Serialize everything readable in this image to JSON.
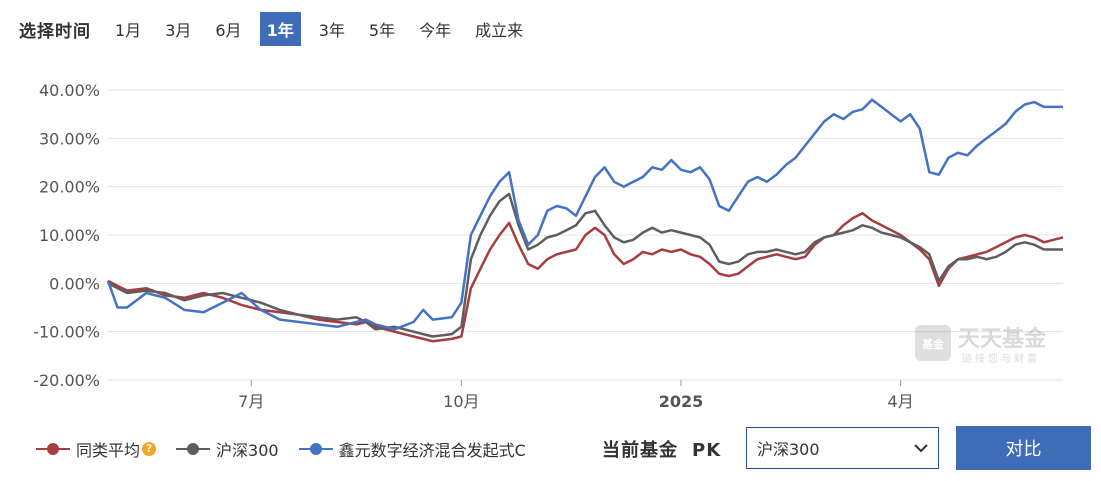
{
  "time_selector": {
    "title": "选择时间",
    "options": [
      "1月",
      "3月",
      "6月",
      "1年",
      "3年",
      "5年",
      "今年",
      "成立来"
    ],
    "active": "1年"
  },
  "watermark": {
    "text": "天天基金",
    "subtext": "链接您与财富",
    "logo_text": "基金"
  },
  "legend": {
    "items": [
      {
        "label": "同类平均",
        "color": "#a63d40",
        "has_help_icon": true
      },
      {
        "label": "沪深300",
        "color": "#5e5e5e",
        "has_help_icon": false
      },
      {
        "label": "鑫元数字经济混合发起式C",
        "color": "#4472c4",
        "has_help_icon": false
      }
    ]
  },
  "pk": {
    "label": "当前基金",
    "pk_text": "PK",
    "selected": "沪深300"
  },
  "compare_button": {
    "label": "对比"
  },
  "chart_data": {
    "type": "line",
    "yticks": [
      "40.00%",
      "30.00%",
      "20.00%",
      "10.00%",
      "0.00%",
      "-10.00%",
      "-20.00%"
    ],
    "ylim": [
      -20,
      40
    ],
    "x_labels": [
      {
        "label": "7月",
        "x": 0.15,
        "bold": false
      },
      {
        "label": "10月",
        "x": 0.37,
        "bold": false
      },
      {
        "label": "2025",
        "x": 0.6,
        "bold": true
      },
      {
        "label": "4月",
        "x": 0.83,
        "bold": false
      }
    ],
    "grid": true,
    "series": [
      {
        "name": "同类平均",
        "color": "#a63d40",
        "points": [
          [
            0,
            0.5
          ],
          [
            0.01,
            -0.5
          ],
          [
            0.02,
            -1.5
          ],
          [
            0.04,
            -1.0
          ],
          [
            0.06,
            -2.5
          ],
          [
            0.08,
            -3.0
          ],
          [
            0.1,
            -2.0
          ],
          [
            0.12,
            -3.0
          ],
          [
            0.14,
            -4.5
          ],
          [
            0.16,
            -5.5
          ],
          [
            0.18,
            -6.0
          ],
          [
            0.2,
            -6.5
          ],
          [
            0.22,
            -7.5
          ],
          [
            0.24,
            -8.0
          ],
          [
            0.26,
            -8.5
          ],
          [
            0.27,
            -8.0
          ],
          [
            0.28,
            -9.0
          ],
          [
            0.3,
            -10.0
          ],
          [
            0.32,
            -11.0
          ],
          [
            0.33,
            -11.5
          ],
          [
            0.34,
            -12.0
          ],
          [
            0.36,
            -11.5
          ],
          [
            0.37,
            -11.0
          ],
          [
            0.38,
            -1.0
          ],
          [
            0.39,
            3.0
          ],
          [
            0.4,
            7.0
          ],
          [
            0.41,
            10.0
          ],
          [
            0.42,
            12.5
          ],
          [
            0.43,
            8.0
          ],
          [
            0.44,
            4.0
          ],
          [
            0.45,
            3.0
          ],
          [
            0.46,
            5.0
          ],
          [
            0.47,
            6.0
          ],
          [
            0.48,
            6.5
          ],
          [
            0.49,
            7.0
          ],
          [
            0.5,
            10.0
          ],
          [
            0.51,
            11.5
          ],
          [
            0.52,
            10.0
          ],
          [
            0.53,
            6.0
          ],
          [
            0.54,
            4.0
          ],
          [
            0.55,
            5.0
          ],
          [
            0.56,
            6.5
          ],
          [
            0.57,
            6.0
          ],
          [
            0.58,
            7.0
          ],
          [
            0.59,
            6.5
          ],
          [
            0.6,
            7.0
          ],
          [
            0.61,
            6.0
          ],
          [
            0.62,
            5.5
          ],
          [
            0.63,
            4.0
          ],
          [
            0.64,
            2.0
          ],
          [
            0.65,
            1.5
          ],
          [
            0.66,
            2.0
          ],
          [
            0.67,
            3.5
          ],
          [
            0.68,
            5.0
          ],
          [
            0.69,
            5.5
          ],
          [
            0.7,
            6.0
          ],
          [
            0.71,
            5.5
          ],
          [
            0.72,
            5.0
          ],
          [
            0.73,
            5.5
          ],
          [
            0.74,
            8.0
          ],
          [
            0.75,
            9.5
          ],
          [
            0.76,
            10.0
          ],
          [
            0.77,
            12.0
          ],
          [
            0.78,
            13.5
          ],
          [
            0.79,
            14.5
          ],
          [
            0.8,
            13.0
          ],
          [
            0.81,
            12.0
          ],
          [
            0.82,
            11.0
          ],
          [
            0.83,
            10.0
          ],
          [
            0.84,
            8.5
          ],
          [
            0.85,
            7.0
          ],
          [
            0.86,
            5.0
          ],
          [
            0.87,
            -0.5
          ],
          [
            0.88,
            3.0
          ],
          [
            0.89,
            5.0
          ],
          [
            0.9,
            5.5
          ],
          [
            0.91,
            6.0
          ],
          [
            0.92,
            6.5
          ],
          [
            0.93,
            7.5
          ],
          [
            0.94,
            8.5
          ],
          [
            0.95,
            9.5
          ],
          [
            0.96,
            10.0
          ],
          [
            0.97,
            9.5
          ],
          [
            0.98,
            8.5
          ],
          [
            0.99,
            9.0
          ],
          [
            1.0,
            9.5
          ]
        ]
      },
      {
        "name": "沪深300",
        "color": "#5e5e5e",
        "points": [
          [
            0,
            0.0
          ],
          [
            0.01,
            -1.0
          ],
          [
            0.02,
            -2.0
          ],
          [
            0.04,
            -1.5
          ],
          [
            0.06,
            -2.0
          ],
          [
            0.08,
            -3.5
          ],
          [
            0.1,
            -2.5
          ],
          [
            0.12,
            -2.0
          ],
          [
            0.14,
            -3.0
          ],
          [
            0.16,
            -4.0
          ],
          [
            0.18,
            -5.5
          ],
          [
            0.2,
            -6.5
          ],
          [
            0.22,
            -7.0
          ],
          [
            0.24,
            -7.5
          ],
          [
            0.26,
            -7.0
          ],
          [
            0.27,
            -8.0
          ],
          [
            0.28,
            -9.5
          ],
          [
            0.3,
            -9.0
          ],
          [
            0.32,
            -10.0
          ],
          [
            0.33,
            -10.5
          ],
          [
            0.34,
            -11.0
          ],
          [
            0.36,
            -10.5
          ],
          [
            0.37,
            -9.0
          ],
          [
            0.38,
            5.0
          ],
          [
            0.39,
            10.0
          ],
          [
            0.4,
            14.0
          ],
          [
            0.41,
            17.0
          ],
          [
            0.42,
            18.5
          ],
          [
            0.43,
            12.0
          ],
          [
            0.44,
            7.0
          ],
          [
            0.45,
            8.0
          ],
          [
            0.46,
            9.5
          ],
          [
            0.47,
            10.0
          ],
          [
            0.48,
            11.0
          ],
          [
            0.49,
            12.0
          ],
          [
            0.5,
            14.5
          ],
          [
            0.51,
            15.0
          ],
          [
            0.52,
            12.0
          ],
          [
            0.53,
            9.5
          ],
          [
            0.54,
            8.5
          ],
          [
            0.55,
            9.0
          ],
          [
            0.56,
            10.5
          ],
          [
            0.57,
            11.5
          ],
          [
            0.58,
            10.5
          ],
          [
            0.59,
            11.0
          ],
          [
            0.6,
            10.5
          ],
          [
            0.61,
            10.0
          ],
          [
            0.62,
            9.5
          ],
          [
            0.63,
            8.0
          ],
          [
            0.64,
            4.5
          ],
          [
            0.65,
            4.0
          ],
          [
            0.66,
            4.5
          ],
          [
            0.67,
            6.0
          ],
          [
            0.68,
            6.5
          ],
          [
            0.69,
            6.5
          ],
          [
            0.7,
            7.0
          ],
          [
            0.71,
            6.5
          ],
          [
            0.72,
            6.0
          ],
          [
            0.73,
            6.5
          ],
          [
            0.74,
            8.5
          ],
          [
            0.75,
            9.5
          ],
          [
            0.76,
            10.0
          ],
          [
            0.77,
            10.5
          ],
          [
            0.78,
            11.0
          ],
          [
            0.79,
            12.0
          ],
          [
            0.8,
            11.5
          ],
          [
            0.81,
            10.5
          ],
          [
            0.82,
            10.0
          ],
          [
            0.83,
            9.5
          ],
          [
            0.84,
            8.5
          ],
          [
            0.85,
            7.5
          ],
          [
            0.86,
            6.0
          ],
          [
            0.87,
            0.5
          ],
          [
            0.88,
            3.5
          ],
          [
            0.89,
            5.0
          ],
          [
            0.9,
            5.0
          ],
          [
            0.91,
            5.5
          ],
          [
            0.92,
            5.0
          ],
          [
            0.93,
            5.5
          ],
          [
            0.94,
            6.5
          ],
          [
            0.95,
            8.0
          ],
          [
            0.96,
            8.5
          ],
          [
            0.97,
            8.0
          ],
          [
            0.98,
            7.0
          ],
          [
            0.99,
            7.0
          ],
          [
            1.0,
            7.0
          ]
        ]
      },
      {
        "name": "鑫元数字经济混合发起式C",
        "color": "#4472c4",
        "points": [
          [
            0,
            0.5
          ],
          [
            0.01,
            -5.0
          ],
          [
            0.02,
            -5.0
          ],
          [
            0.04,
            -2.0
          ],
          [
            0.06,
            -3.0
          ],
          [
            0.08,
            -5.5
          ],
          [
            0.1,
            -6.0
          ],
          [
            0.12,
            -4.0
          ],
          [
            0.14,
            -2.0
          ],
          [
            0.16,
            -5.5
          ],
          [
            0.18,
            -7.5
          ],
          [
            0.2,
            -8.0
          ],
          [
            0.22,
            -8.5
          ],
          [
            0.24,
            -9.0
          ],
          [
            0.26,
            -8.0
          ],
          [
            0.27,
            -7.5
          ],
          [
            0.28,
            -8.5
          ],
          [
            0.3,
            -9.5
          ],
          [
            0.32,
            -8.0
          ],
          [
            0.33,
            -5.5
          ],
          [
            0.34,
            -7.5
          ],
          [
            0.36,
            -7.0
          ],
          [
            0.37,
            -4.0
          ],
          [
            0.38,
            10.0
          ],
          [
            0.39,
            14.0
          ],
          [
            0.4,
            18.0
          ],
          [
            0.41,
            21.0
          ],
          [
            0.42,
            23.0
          ],
          [
            0.43,
            13.0
          ],
          [
            0.44,
            8.0
          ],
          [
            0.45,
            10.0
          ],
          [
            0.46,
            15.0
          ],
          [
            0.47,
            16.0
          ],
          [
            0.48,
            15.5
          ],
          [
            0.49,
            14.0
          ],
          [
            0.5,
            18.0
          ],
          [
            0.51,
            22.0
          ],
          [
            0.52,
            24.0
          ],
          [
            0.53,
            21.0
          ],
          [
            0.54,
            20.0
          ],
          [
            0.55,
            21.0
          ],
          [
            0.56,
            22.0
          ],
          [
            0.57,
            24.0
          ],
          [
            0.58,
            23.5
          ],
          [
            0.59,
            25.5
          ],
          [
            0.6,
            23.5
          ],
          [
            0.61,
            23.0
          ],
          [
            0.62,
            24.0
          ],
          [
            0.63,
            21.5
          ],
          [
            0.64,
            16.0
          ],
          [
            0.65,
            15.0
          ],
          [
            0.66,
            18.0
          ],
          [
            0.67,
            21.0
          ],
          [
            0.68,
            22.0
          ],
          [
            0.69,
            21.0
          ],
          [
            0.7,
            22.5
          ],
          [
            0.71,
            24.5
          ],
          [
            0.72,
            26.0
          ],
          [
            0.73,
            28.5
          ],
          [
            0.74,
            31.0
          ],
          [
            0.75,
            33.5
          ],
          [
            0.76,
            35.0
          ],
          [
            0.77,
            34.0
          ],
          [
            0.78,
            35.5
          ],
          [
            0.79,
            36.0
          ],
          [
            0.8,
            38.0
          ],
          [
            0.81,
            36.5
          ],
          [
            0.82,
            35.0
          ],
          [
            0.83,
            33.5
          ],
          [
            0.84,
            35.0
          ],
          [
            0.85,
            32.0
          ],
          [
            0.86,
            23.0
          ],
          [
            0.87,
            22.5
          ],
          [
            0.88,
            26.0
          ],
          [
            0.89,
            27.0
          ],
          [
            0.9,
            26.5
          ],
          [
            0.91,
            28.5
          ],
          [
            0.92,
            30.0
          ],
          [
            0.93,
            31.5
          ],
          [
            0.94,
            33.0
          ],
          [
            0.95,
            35.5
          ],
          [
            0.96,
            37.0
          ],
          [
            0.97,
            37.5
          ],
          [
            0.98,
            36.5
          ],
          [
            0.99,
            36.5
          ],
          [
            1.0,
            36.5
          ]
        ]
      }
    ]
  }
}
